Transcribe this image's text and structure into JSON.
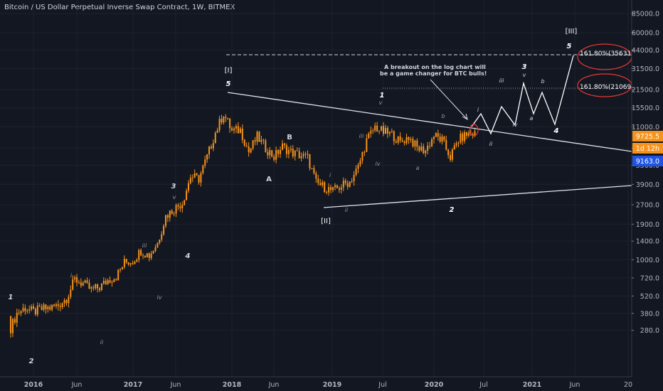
{
  "header": {
    "symbol_title": "Bitcoin / US Dollar Perpetual Inverse Swap Contract, 1W, BITMEX"
  },
  "chart_data": {
    "type": "candlestick",
    "scale": "log",
    "price_ticks": [
      "85000.0",
      "60000.0",
      "44000.0",
      "31500.0",
      "21500.0",
      "15500.0",
      "11000.0",
      "7500.0",
      "5500.0",
      "3900.0",
      "2700.0",
      "1900.0",
      "1400.0",
      "1000.0",
      "720.0",
      "520.0",
      "380.0",
      "280.0"
    ],
    "time_ticks": [
      "2016",
      "Jun",
      "2017",
      "Jun",
      "2018",
      "Jun",
      "2019",
      "Jul",
      "2020",
      "Jul",
      "2021",
      "Jun",
      "20"
    ],
    "price_badges": [
      {
        "label": "9725.5",
        "value": 9725.5,
        "color": "#f7931a"
      },
      {
        "label": "1d 12h",
        "color": "#f7931a"
      },
      {
        "label": "9163.0",
        "value": 9163.0,
        "color": "#1e53e5"
      }
    ],
    "series": [
      {
        "name": "",
        "points": [
          [
            "2015-11",
            380
          ],
          [
            "2015-12",
            420
          ],
          [
            "2016-01",
            390
          ],
          [
            "2016-02",
            410
          ],
          [
            "2016-03",
            420
          ],
          [
            "2016-04",
            440
          ],
          [
            "2016-05",
            500
          ],
          [
            "2016-06",
            700
          ],
          [
            "2016-07",
            650
          ],
          [
            "2016-08",
            580
          ],
          [
            "2016-09",
            610
          ],
          [
            "2016-10",
            690
          ],
          [
            "2016-11",
            740
          ],
          [
            "2016-12",
            950
          ],
          [
            "2017-01",
            980
          ],
          [
            "2017-02",
            1180
          ],
          [
            "2017-03",
            1080
          ],
          [
            "2017-04",
            1350
          ],
          [
            "2017-05",
            2200
          ],
          [
            "2017-06",
            2500
          ],
          [
            "2017-07",
            2800
          ],
          [
            "2017-08",
            4500
          ],
          [
            "2017-09",
            4300
          ],
          [
            "2017-10",
            6400
          ],
          [
            "2017-11",
            9900
          ],
          [
            "2017-12",
            14000
          ],
          [
            "2018-01",
            10200
          ],
          [
            "2018-02",
            10400
          ],
          [
            "2018-03",
            7000
          ],
          [
            "2018-04",
            9200
          ],
          [
            "2018-05",
            7500
          ],
          [
            "2018-06",
            6400
          ],
          [
            "2018-07",
            7700
          ],
          [
            "2018-08",
            7000
          ],
          [
            "2018-09",
            6600
          ],
          [
            "2018-10",
            6300
          ],
          [
            "2018-11",
            4000
          ],
          [
            "2018-12",
            3700
          ],
          [
            "2019-01",
            3450
          ],
          [
            "2019-02",
            3800
          ],
          [
            "2019-03",
            4100
          ],
          [
            "2019-04",
            5300
          ],
          [
            "2019-05",
            8600
          ],
          [
            "2019-06",
            11000
          ],
          [
            "2019-07",
            10000
          ],
          [
            "2019-08",
            9600
          ],
          [
            "2019-09",
            8300
          ],
          [
            "2019-10",
            9200
          ],
          [
            "2019-11",
            7500
          ],
          [
            "2019-12",
            7200
          ],
          [
            "2020-01",
            9400
          ],
          [
            "2020-02",
            8600
          ],
          [
            "2020-03",
            6400
          ],
          [
            "2020-04",
            8700
          ],
          [
            "2020-05",
            9600
          ],
          [
            "2020-06",
            9725.5
          ]
        ]
      }
    ],
    "annotations": [
      {
        "text": "[I]"
      },
      {
        "text": "[II]"
      },
      {
        "text": "[III]"
      },
      {
        "text": "A"
      },
      {
        "text": "B"
      },
      {
        "text": "1"
      },
      {
        "text": "2"
      },
      {
        "text": "3"
      },
      {
        "text": "4"
      },
      {
        "text": "5"
      },
      {
        "text": "i"
      },
      {
        "text": "ii"
      },
      {
        "text": "iii"
      },
      {
        "text": "iv"
      },
      {
        "text": "v"
      },
      {
        "text": "a"
      },
      {
        "text": "b"
      }
    ],
    "note": "A breakout on the log chart will be a game changer for BTC bulls!",
    "fib_targets": [
      {
        "label": "161.80%(35631.5)",
        "value": 35631.5
      },
      {
        "label": "161.80%(21069.0)",
        "value": 21069.0
      }
    ]
  }
}
